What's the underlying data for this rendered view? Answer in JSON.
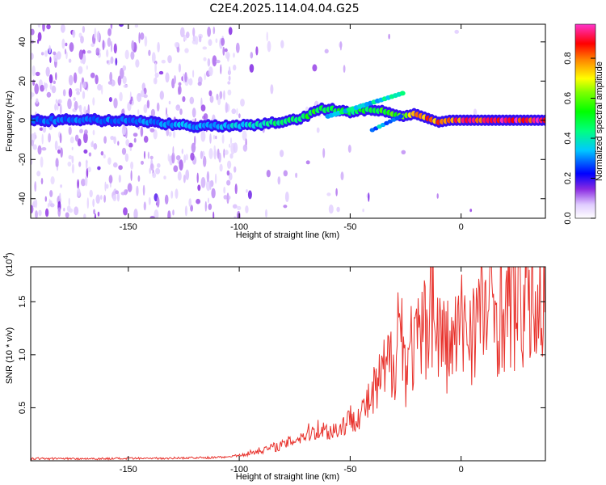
{
  "figure_title": "C2E4.2025.114.04.04.G25",
  "chart_data": [
    {
      "type": "heatmap",
      "xlabel": "Height of straight line (km)",
      "ylabel": "Frequency (Hz)",
      "xlim": [
        -194,
        38
      ],
      "ylim": [
        -50,
        49
      ],
      "xticks": [
        -150,
        -100,
        -50,
        0
      ],
      "yticks": [
        -40,
        -20,
        0,
        20,
        40
      ],
      "colorbar": {
        "label": "Normalized spectral amplitude",
        "range": [
          0,
          0.97
        ],
        "ticks": [
          "0.0",
          "0.2",
          "0.4",
          "0.6",
          "0.8"
        ]
      },
      "ridge": {
        "x": [
          -194,
          -150,
          -120,
          -100,
          -90,
          -80,
          -70,
          -62,
          -55,
          -50,
          -40,
          -32,
          -28,
          -25,
          -20,
          -15,
          -10,
          -5,
          0,
          10,
          20,
          38
        ],
        "y": [
          0,
          0,
          -3,
          -3,
          -2,
          -1,
          2,
          6,
          5,
          4,
          6,
          4,
          2,
          3,
          3,
          1,
          -1,
          0,
          0,
          0,
          0,
          0
        ],
        "amp": [
          0.3,
          0.32,
          0.35,
          0.38,
          0.45,
          0.5,
          0.55,
          0.55,
          0.52,
          0.5,
          0.55,
          0.6,
          0.65,
          0.7,
          0.8,
          0.85,
          0.85,
          0.9,
          0.93,
          0.95,
          0.96,
          0.96
        ]
      }
    },
    {
      "type": "line",
      "xlabel": "Height of straight line (km)",
      "ylabel": "SNR (10 * v/v)",
      "y_exponent_label": "(x10",
      "y_exponent_power": "4",
      "y_exponent_close": ")",
      "xlim": [
        -194,
        38
      ],
      "ylim": [
        0,
        1.83
      ],
      "xticks": [
        -150,
        -100,
        -50,
        0
      ],
      "yticks": [
        "0.5",
        "1.0",
        "1.5"
      ],
      "line_color": "#e8322c",
      "series": [
        {
          "x": [
            -194,
            -150,
            -110,
            -100,
            -90,
            -80,
            -70,
            -65,
            -60,
            -55,
            -50,
            -45,
            -40,
            -35,
            -30,
            -28,
            -25,
            -22,
            -20,
            -15,
            -14,
            -12,
            -10,
            -5,
            0,
            5,
            10,
            20,
            30,
            38
          ],
          "y": [
            0.02,
            0.02,
            0.03,
            0.05,
            0.1,
            0.15,
            0.25,
            0.3,
            0.28,
            0.3,
            0.4,
            0.45,
            0.6,
            0.8,
            1.0,
            1.4,
            0.9,
            1.1,
            1.05,
            1.3,
            1.83,
            1.3,
            1.2,
            1.05,
            1.25,
            1.3,
            1.4,
            1.45,
            1.5,
            1.52
          ]
        }
      ]
    }
  ]
}
